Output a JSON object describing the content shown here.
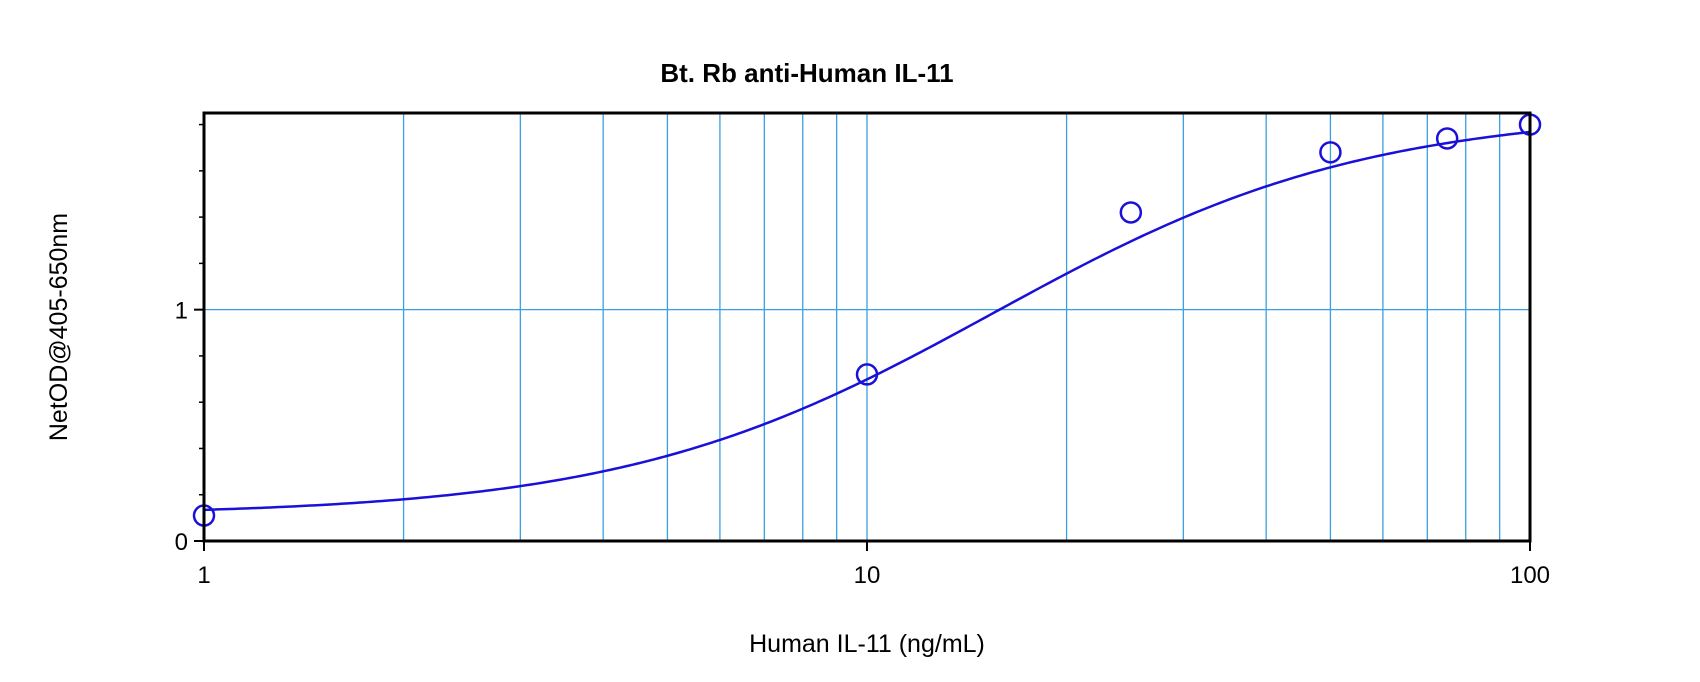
{
  "chart_data": {
    "type": "scatter",
    "title": "Bt. Rb anti-Human IL-11",
    "xlabel": "Human IL-11 (ng/mL)",
    "ylabel": "NetOD@405-650nm",
    "xscale": "log",
    "xlim": [
      1,
      100
    ],
    "ylim": [
      0,
      1.85
    ],
    "x_ticks": [
      "1",
      "10",
      "100"
    ],
    "y_ticks": [
      "0",
      "1"
    ],
    "grid": true,
    "series": [
      {
        "x": [
          1,
          10,
          25,
          50,
          75,
          100
        ],
        "y": [
          0.11,
          0.72,
          1.42,
          1.68,
          1.74,
          1.8
        ]
      }
    ],
    "fit_curve": {
      "type": "4PL",
      "bottom": 0.11,
      "top": 1.86,
      "ec50": 15.5,
      "hill": 1.55
    }
  },
  "colors": {
    "grid": "#3aa0e0",
    "curve": "#1a10d8",
    "marker": "#1a10d8",
    "axes": "#000000"
  }
}
